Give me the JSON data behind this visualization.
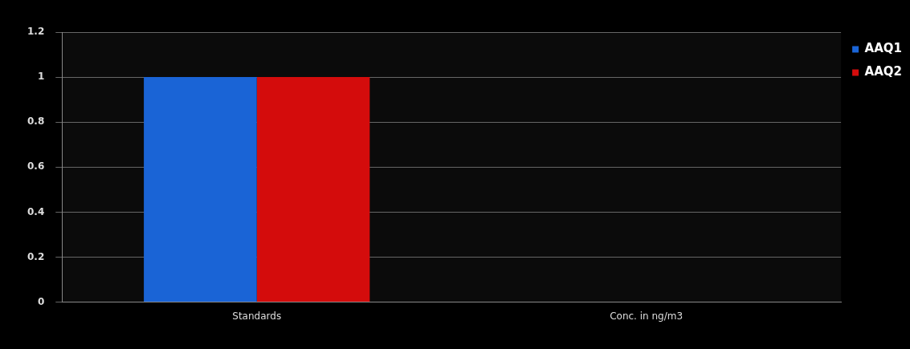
{
  "chart_data": {
    "type": "bar",
    "categories": [
      "Standards",
      "Conc. in ng/m3"
    ],
    "series": [
      {
        "name": "AAQ1",
        "color": "#1a64d6",
        "values": [
          1,
          null
        ]
      },
      {
        "name": "AAQ2",
        "color": "#d40c0c",
        "values": [
          1,
          null
        ]
      }
    ],
    "ylim": [
      0,
      1.2
    ],
    "yticks": [
      0,
      0.2,
      0.4,
      0.6,
      0.8,
      1,
      1.2
    ],
    "grid": "y",
    "legend": "top right"
  }
}
